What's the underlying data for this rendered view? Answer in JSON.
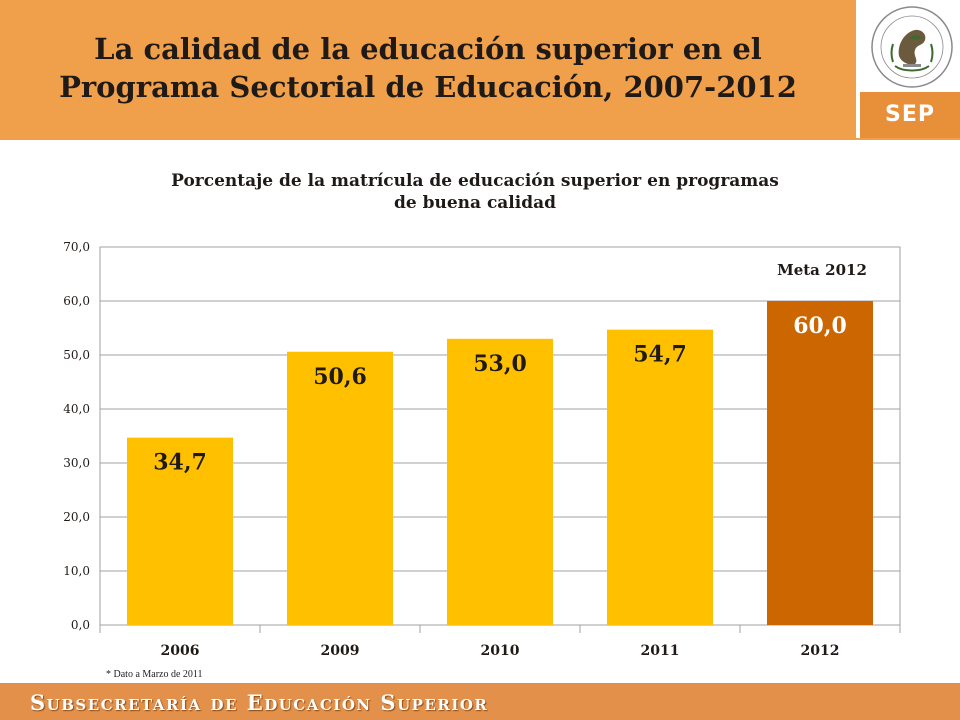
{
  "header": {
    "title_line1": "La calidad de la educación superior en el",
    "title_line2": "Programa Sectorial de Educación, 2007-2012",
    "logo_text": "SEP",
    "seal_text": "ESTADOS UNIDOS MEXICANOS"
  },
  "chart_data": {
    "type": "bar",
    "title_line1": "Porcentaje de la matrícula de educación superior en programas",
    "title_line2": "de buena calidad",
    "categories": [
      "2006",
      "2009",
      "2010",
      "2011",
      "2012"
    ],
    "values": [
      34.7,
      50.6,
      53.0,
      54.7,
      60.0
    ],
    "value_labels": [
      "34,7",
      "50,6",
      "53,0",
      "54,7",
      "60,0"
    ],
    "ylim": [
      0,
      70
    ],
    "yticks": [
      "0,0",
      "10,0",
      "20,0",
      "30,0",
      "40,0",
      "50,0",
      "60,0",
      "70,0"
    ],
    "grid": true,
    "annotation": "Meta 2012",
    "colors": {
      "bar": "#FFC000",
      "highlight_bar": "#CC6600",
      "label": "#1f1a17",
      "highlight_label": "#ffffff"
    }
  },
  "footnote": "* Dato a Marzo de 2011",
  "footer": {
    "text": "Subsecretaría de Educación Superior"
  }
}
